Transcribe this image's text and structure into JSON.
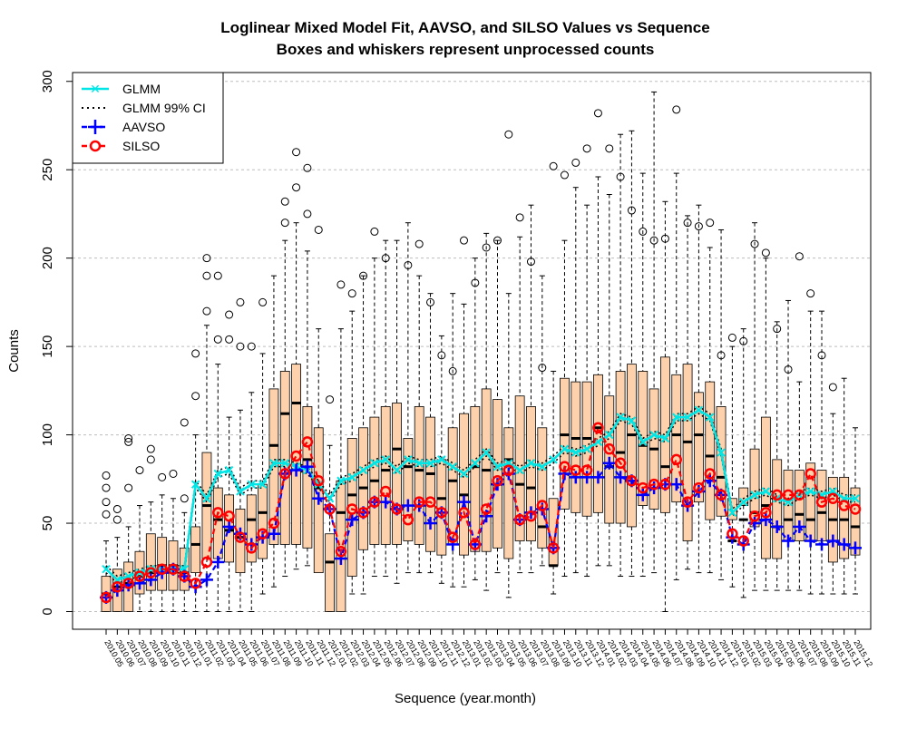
{
  "chart_data": {
    "type": "box",
    "title": "Loglinear Mixed Model Fit, AAVSO, and SILSO Values vs Sequence",
    "subtitle": "Boxes and whiskers represent unprocessed counts",
    "xlabel": "Sequence (year.month)",
    "ylabel": "Counts",
    "ylim": [
      -10,
      305
    ],
    "yticks": [
      0,
      50,
      100,
      150,
      200,
      250,
      300
    ],
    "grid": true,
    "legend_position": "top-left",
    "colors": {
      "box_fill": "#fdd1ab",
      "glmm": "#00e6e6",
      "ci": "#000000",
      "aavso": "#0000ff",
      "silso": "#ff0000"
    },
    "legend": [
      {
        "label": "GLMM",
        "marker": "x",
        "color": "#00e6e6",
        "line": "solid"
      },
      {
        "label": "GLMM 99% CI",
        "marker": "none",
        "color": "#000000",
        "line": "dotted"
      },
      {
        "label": "AAVSO",
        "marker": "+",
        "color": "#0000ff",
        "line": "dashed"
      },
      {
        "label": "SILSO",
        "marker": "o",
        "color": "#ff0000",
        "line": "dashed"
      }
    ],
    "categories": [
      "2010.05",
      "2010.06",
      "2010.07",
      "2010.08",
      "2010.09",
      "2010.10",
      "2010.11",
      "2010.12",
      "2011.01",
      "2011.02",
      "2011.03",
      "2011.04",
      "2011.05",
      "2011.06",
      "2011.07",
      "2011.08",
      "2011.09",
      "2011.10",
      "2011.11",
      "2011.12",
      "2012.01",
      "2012.02",
      "2012.03",
      "2012.04",
      "2012.05",
      "2012.06",
      "2012.07",
      "2012.08",
      "2012.09",
      "2012.10",
      "2012.11",
      "2012.12",
      "2013.01",
      "2013.02",
      "2013.03",
      "2013.04",
      "2013.05",
      "2013.06",
      "2013.07",
      "2013.08",
      "2013.09",
      "2013.10",
      "2013.11",
      "2013.12",
      "2014.01",
      "2014.02",
      "2014.03",
      "2014.04",
      "2014.05",
      "2014.06",
      "2014.07",
      "2014.08",
      "2014.09",
      "2014.10",
      "2014.11",
      "2014.12",
      "2015.01",
      "2015.02",
      "2015.03",
      "2015.04",
      "2015.05",
      "2015.06",
      "2015.07",
      "2015.08",
      "2015.09",
      "2015.10",
      "2015.11",
      "2015.12"
    ],
    "boxes": {
      "q1": [
        0,
        0,
        0,
        10,
        12,
        12,
        12,
        12,
        22,
        30,
        30,
        28,
        22,
        28,
        30,
        38,
        38,
        38,
        36,
        22,
        0,
        0,
        20,
        35,
        38,
        38,
        38,
        40,
        38,
        34,
        32,
        38,
        32,
        34,
        34,
        36,
        30,
        40,
        40,
        36,
        26,
        58,
        56,
        54,
        56,
        50,
        50,
        48,
        60,
        58,
        56,
        62,
        40,
        62,
        52,
        54,
        52,
        60,
        48,
        30,
        30,
        40,
        40,
        40,
        40,
        28,
        30,
        32
      ],
      "median": [
        10,
        14,
        16,
        20,
        22,
        26,
        26,
        22,
        38,
        60,
        52,
        46,
        42,
        52,
        56,
        94,
        112,
        118,
        86,
        70,
        28,
        56,
        66,
        70,
        74,
        80,
        92,
        82,
        80,
        78,
        64,
        74,
        66,
        82,
        80,
        72,
        86,
        72,
        70,
        48,
        26,
        100,
        98,
        98,
        104,
        82,
        90,
        100,
        94,
        92,
        82,
        100,
        96,
        100,
        88,
        76,
        40,
        52,
        56,
        60,
        48,
        52,
        55,
        52,
        56,
        52,
        52,
        48
      ],
      "q3": [
        20,
        24,
        28,
        34,
        44,
        42,
        40,
        36,
        48,
        90,
        70,
        66,
        58,
        66,
        72,
        126,
        136,
        140,
        116,
        104,
        44,
        74,
        98,
        104,
        110,
        116,
        118,
        98,
        116,
        110,
        86,
        104,
        112,
        116,
        126,
        120,
        104,
        122,
        116,
        104,
        64,
        132,
        130,
        130,
        134,
        122,
        136,
        140,
        136,
        126,
        144,
        134,
        140,
        124,
        130,
        116,
        64,
        70,
        92,
        110,
        86,
        80,
        80,
        84,
        80,
        76,
        76,
        70
      ],
      "lo": [
        0,
        0,
        0,
        0,
        0,
        0,
        0,
        0,
        0,
        0,
        0,
        0,
        0,
        0,
        10,
        14,
        20,
        24,
        26,
        24,
        0,
        10,
        10,
        10,
        20,
        20,
        16,
        22,
        22,
        22,
        16,
        14,
        14,
        18,
        12,
        22,
        8,
        22,
        22,
        26,
        10,
        20,
        22,
        20,
        26,
        26,
        20,
        20,
        20,
        22,
        0,
        18,
        24,
        22,
        22,
        18,
        14,
        8,
        12,
        12,
        12,
        12,
        12,
        10,
        10,
        10,
        10,
        10
      ],
      "hi": [
        40,
        42,
        48,
        60,
        62,
        66,
        64,
        56,
        100,
        162,
        140,
        110,
        114,
        124,
        146,
        190,
        210,
        220,
        204,
        160,
        94,
        160,
        170,
        190,
        200,
        210,
        210,
        220,
        190,
        180,
        156,
        180,
        174,
        200,
        214,
        210,
        180,
        212,
        230,
        190,
        136,
        210,
        240,
        230,
        246,
        236,
        270,
        272,
        248,
        294,
        232,
        248,
        224,
        230,
        206,
        216,
        150,
        160,
        220,
        200,
        164,
        176,
        130,
        170,
        170,
        112,
        132,
        104
      ]
    },
    "series": [
      {
        "name": "GLMM",
        "values": [
          24,
          18,
          20,
          22,
          24,
          24,
          24,
          24,
          72,
          64,
          78,
          80,
          68,
          72,
          72,
          84,
          84,
          82,
          80,
          72,
          64,
          74,
          76,
          80,
          84,
          86,
          80,
          86,
          84,
          84,
          86,
          82,
          78,
          84,
          90,
          82,
          84,
          80,
          84,
          82,
          86,
          92,
          90,
          92,
          96,
          100,
          110,
          108,
          96,
          100,
          98,
          110,
          110,
          114,
          110,
          90,
          56,
          62,
          66,
          68,
          64,
          62,
          66,
          68,
          66,
          68,
          64,
          64
        ]
      },
      {
        "name": "GLMM 99% CI upper",
        "values": [
          26,
          20,
          22,
          24,
          26,
          26,
          26,
          26,
          74,
          66,
          80,
          82,
          70,
          74,
          74,
          86,
          86,
          84,
          82,
          74,
          66,
          76,
          78,
          82,
          86,
          88,
          82,
          88,
          86,
          86,
          88,
          84,
          80,
          86,
          92,
          84,
          86,
          82,
          86,
          84,
          88,
          94,
          92,
          94,
          98,
          102,
          112,
          110,
          98,
          102,
          100,
          112,
          112,
          116,
          112,
          92,
          58,
          64,
          68,
          70,
          66,
          64,
          68,
          70,
          68,
          70,
          66,
          66
        ]
      },
      {
        "name": "GLMM 99% CI lower",
        "values": [
          22,
          16,
          18,
          20,
          22,
          22,
          22,
          22,
          70,
          62,
          76,
          78,
          66,
          70,
          70,
          82,
          82,
          80,
          78,
          70,
          62,
          72,
          74,
          78,
          82,
          84,
          78,
          84,
          82,
          82,
          84,
          80,
          76,
          82,
          88,
          80,
          82,
          78,
          82,
          80,
          84,
          90,
          88,
          90,
          94,
          98,
          108,
          106,
          94,
          98,
          96,
          108,
          108,
          112,
          108,
          88,
          54,
          60,
          64,
          66,
          62,
          60,
          64,
          66,
          64,
          66,
          62,
          62
        ]
      },
      {
        "name": "AAVSO",
        "values": [
          8,
          12,
          15,
          16,
          18,
          22,
          24,
          20,
          14,
          18,
          28,
          48,
          44,
          38,
          42,
          44,
          78,
          80,
          82,
          64,
          58,
          30,
          52,
          56,
          62,
          62,
          58,
          60,
          60,
          50,
          56,
          38,
          62,
          38,
          54,
          72,
          78,
          52,
          56,
          58,
          36,
          78,
          76,
          76,
          76,
          84,
          76,
          74,
          66,
          70,
          72,
          72,
          60,
          68,
          74,
          66,
          42,
          38,
          50,
          52,
          48,
          40,
          48,
          40,
          38,
          40,
          38,
          36
        ]
      },
      {
        "name": "SILSO",
        "values": [
          8,
          14,
          16,
          20,
          22,
          24,
          24,
          20,
          16,
          28,
          56,
          54,
          42,
          36,
          44,
          50,
          78,
          88,
          96,
          74,
          58,
          34,
          58,
          56,
          62,
          68,
          58,
          52,
          62,
          62,
          56,
          42,
          56,
          38,
          58,
          74,
          80,
          52,
          54,
          60,
          36,
          82,
          80,
          80,
          104,
          92,
          84,
          74,
          70,
          72,
          72,
          86,
          62,
          70,
          78,
          66,
          44,
          40,
          54,
          56,
          66,
          66,
          66,
          78,
          62,
          64,
          60,
          58
        ]
      }
    ],
    "outliers": [
      [
        0,
        55
      ],
      [
        0,
        62
      ],
      [
        0,
        77
      ],
      [
        0,
        70
      ],
      [
        1,
        52
      ],
      [
        1,
        58
      ],
      [
        2,
        70
      ],
      [
        2,
        96
      ],
      [
        2,
        98
      ],
      [
        3,
        80
      ],
      [
        4,
        86
      ],
      [
        4,
        92
      ],
      [
        5,
        76
      ],
      [
        6,
        78
      ],
      [
        7,
        107
      ],
      [
        7,
        64
      ],
      [
        8,
        122
      ],
      [
        8,
        146
      ],
      [
        9,
        200
      ],
      [
        9,
        190
      ],
      [
        9,
        170
      ],
      [
        10,
        190
      ],
      [
        10,
        154
      ],
      [
        11,
        168
      ],
      [
        11,
        154
      ],
      [
        12,
        175
      ],
      [
        12,
        150
      ],
      [
        13,
        150
      ],
      [
        14,
        175
      ],
      [
        16,
        232
      ],
      [
        16,
        220
      ],
      [
        17,
        260
      ],
      [
        17,
        240
      ],
      [
        18,
        251
      ],
      [
        18,
        225
      ],
      [
        19,
        216
      ],
      [
        20,
        120
      ],
      [
        21,
        185
      ],
      [
        22,
        180
      ],
      [
        23,
        190
      ],
      [
        24,
        215
      ],
      [
        25,
        200
      ],
      [
        27,
        196
      ],
      [
        28,
        208
      ],
      [
        29,
        175
      ],
      [
        30,
        145
      ],
      [
        31,
        136
      ],
      [
        32,
        210
      ],
      [
        33,
        186
      ],
      [
        34,
        206
      ],
      [
        35,
        210
      ],
      [
        36,
        270
      ],
      [
        37,
        223
      ],
      [
        38,
        198
      ],
      [
        39,
        138
      ],
      [
        40,
        252
      ],
      [
        41,
        247
      ],
      [
        42,
        254
      ],
      [
        43,
        262
      ],
      [
        44,
        282
      ],
      [
        45,
        262
      ],
      [
        46,
        246
      ],
      [
        47,
        227
      ],
      [
        48,
        215
      ],
      [
        49,
        210
      ],
      [
        50,
        211
      ],
      [
        51,
        284
      ],
      [
        52,
        220
      ],
      [
        53,
        218
      ],
      [
        54,
        220
      ],
      [
        55,
        145
      ],
      [
        56,
        155
      ],
      [
        57,
        153
      ],
      [
        58,
        208
      ],
      [
        59,
        203
      ],
      [
        60,
        160
      ],
      [
        61,
        137
      ],
      [
        62,
        201
      ],
      [
        63,
        180
      ],
      [
        64,
        145
      ],
      [
        65,
        127
      ]
    ]
  }
}
